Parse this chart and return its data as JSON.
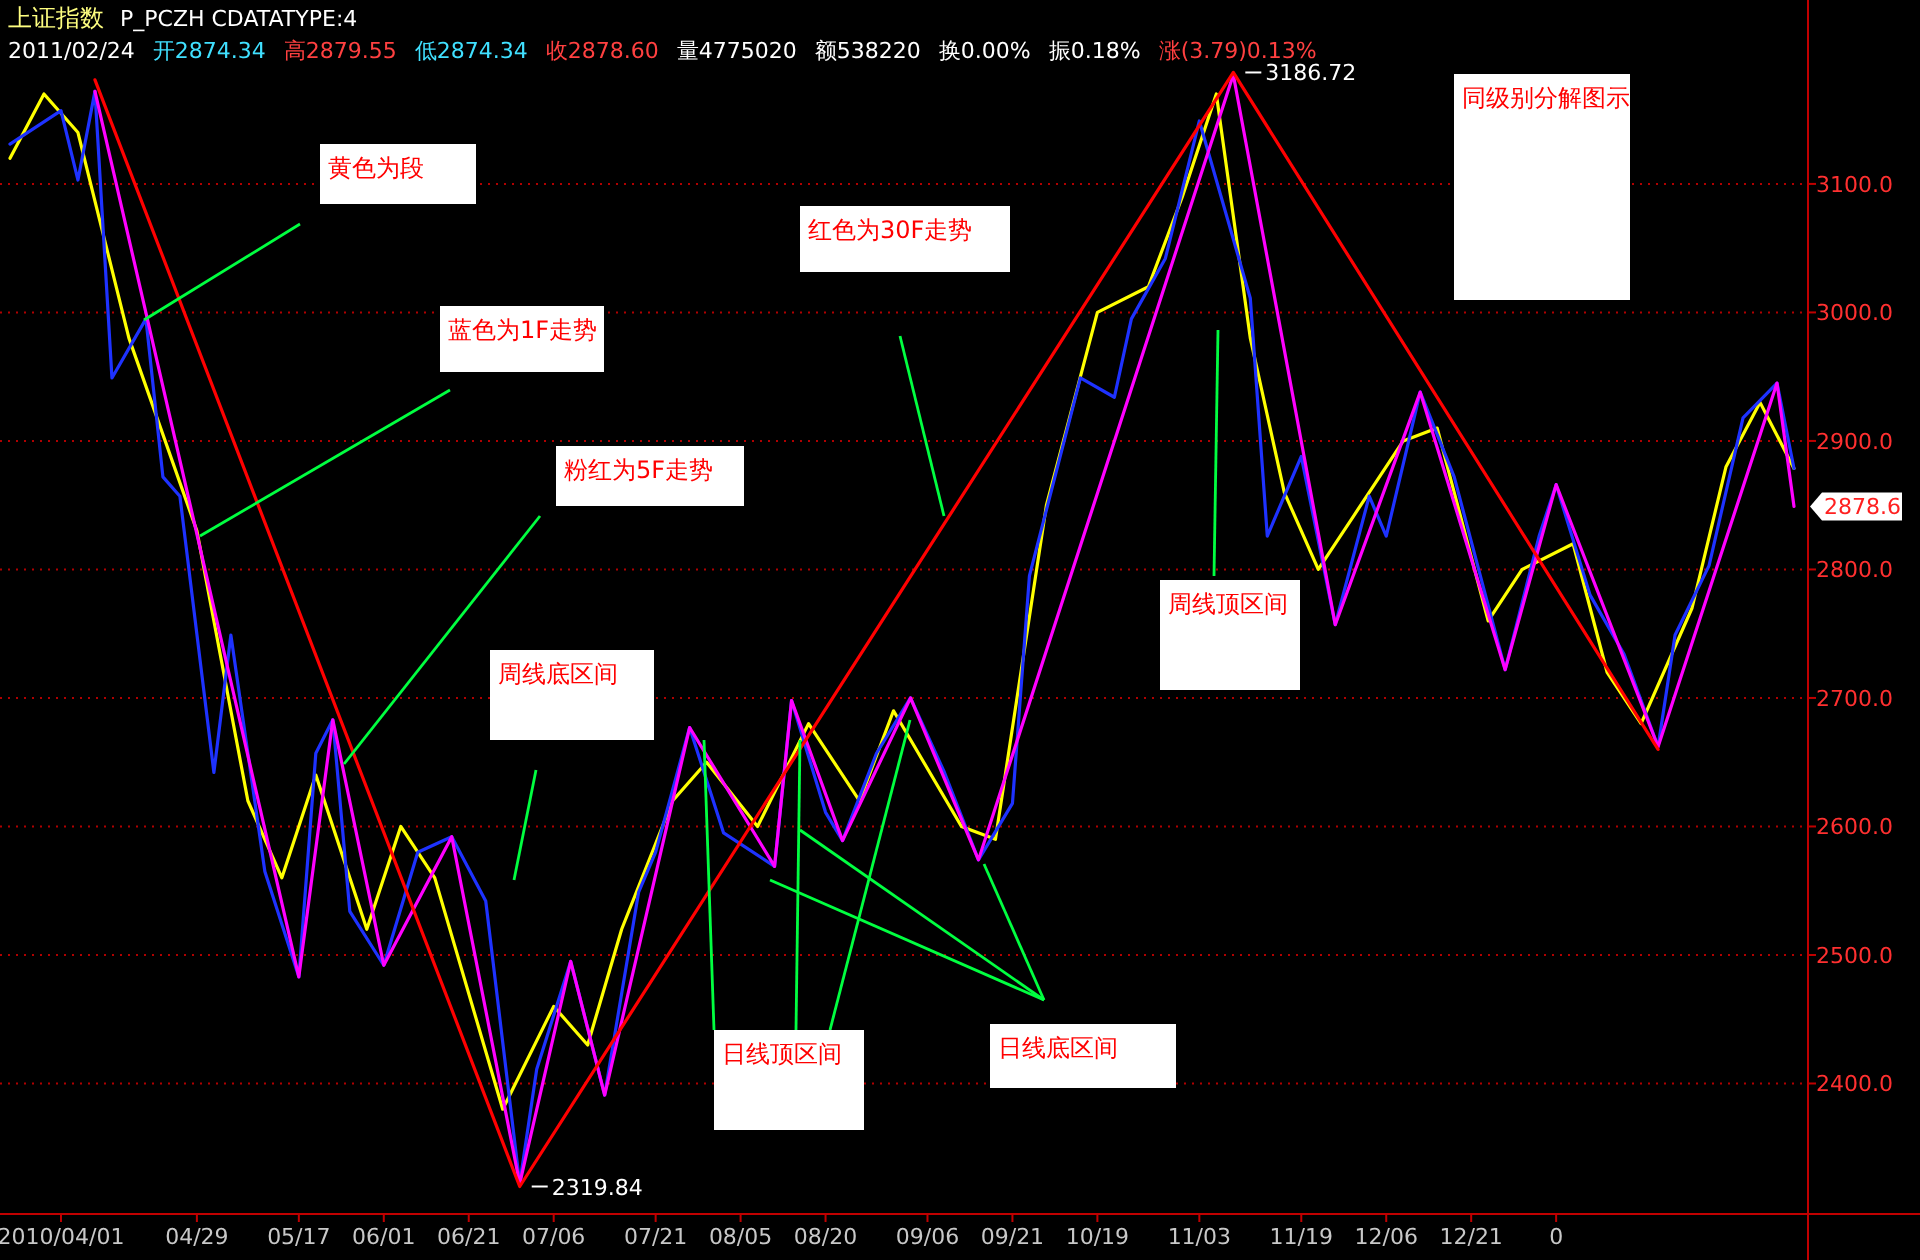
{
  "chart_data": {
    "type": "line",
    "title": "上证指数",
    "subtitle": "P_PCZH CDATATYPE:4",
    "categories": [
      null,
      null,
      null,
      "2010/04/01",
      null,
      null,
      null,
      null,
      null,
      null,
      null,
      "04/29",
      null,
      null,
      null,
      null,
      null,
      "05/17",
      null,
      null,
      null,
      null,
      "06/01",
      null,
      null,
      null,
      null,
      "06/21",
      null,
      null,
      null,
      null,
      "07/06",
      null,
      null,
      null,
      null,
      null,
      "07/21",
      null,
      null,
      null,
      null,
      "08/05",
      null,
      null,
      null,
      null,
      "08/20",
      null,
      null,
      null,
      null,
      null,
      "09/06",
      null,
      null,
      null,
      null,
      "09/21",
      null,
      null,
      null,
      null,
      "10/19",
      null,
      null,
      null,
      null,
      null,
      "11/03",
      null,
      null,
      null,
      null,
      null,
      "11/19",
      null,
      null,
      null,
      null,
      "12/06",
      null,
      null,
      null,
      null,
      "12/21",
      null,
      null,
      null,
      null,
      "0",
      null,
      null,
      null,
      null,
      null,
      null,
      null,
      null,
      null,
      null,
      null,
      null,
      null,
      null
    ],
    "series": [
      {
        "type": "line",
        "color": "#ffff00",
        "values": [
          3120,
          null,
          3170,
          null,
          3140,
          null,
          null,
          2980,
          null,
          null,
          null,
          2830,
          null,
          null,
          2620,
          null,
          2560,
          null,
          2640,
          null,
          null,
          2520,
          null,
          2600,
          null,
          2560,
          null,
          null,
          null,
          2380,
          null,
          null,
          2460,
          null,
          2430,
          null,
          2520,
          null,
          null,
          2620,
          null,
          2650,
          null,
          null,
          2600,
          null,
          null,
          2680,
          null,
          null,
          2620,
          null,
          2690,
          null,
          null,
          null,
          2600,
          null,
          2590,
          null,
          null,
          2850,
          null,
          null,
          3000,
          null,
          null,
          3020,
          null,
          3090,
          null,
          3170,
          null,
          2980,
          null,
          2860,
          null,
          2800,
          null,
          2840,
          null,
          null,
          2900,
          null,
          2910,
          null,
          null,
          2760,
          null,
          2800,
          null,
          null,
          2820,
          null,
          2720,
          null,
          2680,
          null,
          null,
          2770,
          null,
          2880,
          null,
          2930,
          null,
          2878.6
        ]
      },
      {
        "type": "line",
        "color": "#1e32ff",
        "values": [
          3131,
          null,
          null,
          3157,
          3103,
          3172,
          2949,
          null,
          2995,
          2872,
          2857,
          null,
          2642,
          2749,
          null,
          2565,
          null,
          2483,
          2657,
          2683,
          2534,
          null,
          2492,
          null,
          2580,
          null,
          2592,
          null,
          2542,
          null,
          2322,
          2411,
          null,
          2495,
          null,
          2391,
          null,
          2549,
          2580,
          null,
          2677,
          null,
          2595,
          null,
          null,
          2569,
          2698,
          null,
          2611,
          2589,
          null,
          2657,
          null,
          2700,
          null,
          2642,
          null,
          2574,
          null,
          2618,
          2795,
          null,
          null,
          2949,
          null,
          2934,
          2995,
          null,
          3042,
          null,
          3149,
          null,
          null,
          3011,
          2826,
          null,
          2888,
          null,
          2757,
          null,
          2857,
          2826,
          null,
          2938,
          null,
          2872,
          null,
          null,
          2722,
          null,
          2826,
          2866,
          null,
          2780,
          null,
          2734,
          null,
          2662,
          2749,
          null,
          2803,
          null,
          2918,
          null,
          2945,
          2878.6
        ]
      },
      {
        "type": "line",
        "color": "#ff00ff",
        "values": [
          null,
          null,
          null,
          null,
          null,
          3172,
          null,
          null,
          null,
          null,
          null,
          null,
          null,
          null,
          null,
          null,
          null,
          2483,
          null,
          2683,
          null,
          null,
          2492,
          null,
          null,
          null,
          2592,
          null,
          null,
          null,
          2322,
          null,
          null,
          2495,
          null,
          2391,
          null,
          null,
          null,
          null,
          2677,
          null,
          null,
          null,
          null,
          2569,
          2698,
          null,
          null,
          2589,
          null,
          null,
          null,
          2700,
          null,
          null,
          null,
          2574,
          null,
          null,
          null,
          null,
          null,
          null,
          null,
          null,
          null,
          null,
          null,
          null,
          null,
          null,
          3185,
          null,
          null,
          null,
          null,
          null,
          2757,
          null,
          null,
          null,
          null,
          2938,
          null,
          null,
          null,
          null,
          2722,
          null,
          null,
          2866,
          null,
          null,
          null,
          null,
          null,
          2662,
          null,
          null,
          null,
          null,
          null,
          null,
          2945,
          2849
        ]
      },
      {
        "type": "line",
        "color": "#ff0000",
        "values": [
          null,
          null,
          null,
          null,
          null,
          3181,
          null,
          null,
          null,
          null,
          null,
          null,
          null,
          null,
          null,
          null,
          null,
          null,
          null,
          null,
          null,
          null,
          null,
          null,
          null,
          null,
          null,
          null,
          null,
          null,
          2319.84,
          null,
          null,
          null,
          null,
          null,
          null,
          null,
          null,
          null,
          null,
          null,
          null,
          null,
          null,
          null,
          null,
          null,
          null,
          null,
          null,
          null,
          null,
          null,
          null,
          null,
          null,
          null,
          null,
          null,
          null,
          null,
          null,
          null,
          null,
          null,
          null,
          null,
          null,
          null,
          null,
          null,
          3186.72,
          null,
          null,
          null,
          null,
          null,
          null,
          null,
          null,
          null,
          null,
          null,
          null,
          null,
          null,
          null,
          null,
          null,
          null,
          null,
          null,
          null,
          null,
          null,
          null,
          2660,
          null,
          null,
          null,
          null,
          null,
          null,
          null,
          null
        ]
      }
    ],
    "ylim": [
      2300,
      3240
    ],
    "yticks": [
      {
        "value": 2400,
        "label": "2400.0"
      },
      {
        "value": 2500,
        "label": "2500.0"
      },
      {
        "value": 2600,
        "label": "2600.0"
      },
      {
        "value": 2700,
        "label": "2700.0"
      },
      {
        "value": 2800,
        "label": "2800.0"
      },
      {
        "value": 2900,
        "label": "2900.0"
      },
      {
        "value": 3000,
        "label": "3000.0"
      },
      {
        "value": 3100,
        "label": "3100.0"
      }
    ],
    "grid": "y",
    "annotations": [
      "2011/02/24",
      "开2874.34",
      "高2879.55",
      "低2874.34",
      "收2878.60",
      "量4775020",
      "额538220",
      "换0.00%",
      "振0.18%",
      "涨(3.79)0.13%",
      "黄色为段",
      "红色为30F走势",
      "蓝色为1F走势",
      "粉红为5F走势",
      "周线底区间",
      "周线顶区间",
      "日线顶区间",
      "日线底区间",
      "同级别分解图示",
      "3186.72",
      "2319.84",
      "2878.6"
    ]
  }
}
